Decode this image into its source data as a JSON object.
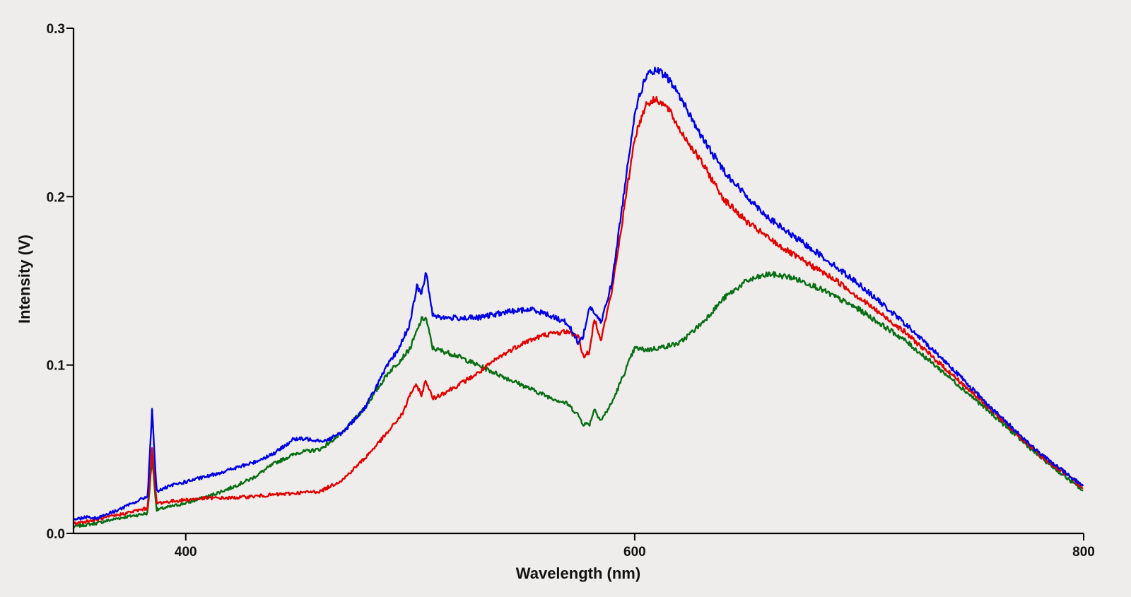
{
  "chart_data": {
    "type": "line",
    "xlabel": "Wavelength (nm)",
    "ylabel": "Intensity (V)",
    "xlim": [
      350,
      800
    ],
    "ylim": [
      0.0,
      0.3
    ],
    "xticks": [
      400,
      600,
      800
    ],
    "xtick_labels": [
      "400",
      "600",
      "800"
    ],
    "yticks": [
      0.0,
      0.1,
      0.2,
      0.3
    ],
    "ytick_labels": [
      "0.0",
      "0.1",
      "0.2",
      "0.3"
    ],
    "grid": false,
    "legend": "none",
    "series": [
      {
        "color": "#0000e0",
        "x": [
          350,
          356,
          360,
          370,
          383,
          385,
          387,
          395,
          410,
          420,
          430,
          440,
          448,
          455,
          462,
          470,
          480,
          490,
          495,
          500,
          503,
          505,
          507,
          510,
          515,
          530,
          545,
          555,
          565,
          570,
          575,
          577,
          580,
          585,
          590,
          595,
          600,
          605,
          610,
          615,
          620,
          630,
          640,
          650,
          660,
          670,
          680,
          690,
          700,
          720,
          740,
          760,
          780,
          800
        ],
        "y": [
          0.008,
          0.01,
          0.009,
          0.014,
          0.022,
          0.073,
          0.025,
          0.029,
          0.034,
          0.038,
          0.042,
          0.048,
          0.056,
          0.056,
          0.055,
          0.06,
          0.075,
          0.1,
          0.11,
          0.125,
          0.147,
          0.142,
          0.155,
          0.13,
          0.128,
          0.128,
          0.132,
          0.133,
          0.128,
          0.125,
          0.113,
          0.117,
          0.135,
          0.125,
          0.15,
          0.2,
          0.25,
          0.272,
          0.275,
          0.27,
          0.26,
          0.235,
          0.215,
          0.2,
          0.187,
          0.177,
          0.168,
          0.158,
          0.148,
          0.125,
          0.1,
          0.073,
          0.048,
          0.028
        ]
      },
      {
        "color": "#e00000",
        "x": [
          350,
          360,
          370,
          383,
          385,
          387,
          400,
          410,
          420,
          430,
          440,
          450,
          460,
          470,
          480,
          490,
          497,
          500,
          503,
          505,
          507,
          510,
          520,
          530,
          540,
          550,
          560,
          570,
          575,
          577,
          580,
          582,
          585,
          590,
          595,
          600,
          605,
          610,
          615,
          620,
          630,
          640,
          650,
          660,
          670,
          680,
          690,
          700,
          720,
          740,
          760,
          780,
          800
        ],
        "y": [
          0.006,
          0.008,
          0.011,
          0.015,
          0.05,
          0.018,
          0.02,
          0.021,
          0.021,
          0.022,
          0.023,
          0.024,
          0.025,
          0.032,
          0.045,
          0.06,
          0.072,
          0.083,
          0.088,
          0.082,
          0.091,
          0.08,
          0.087,
          0.095,
          0.105,
          0.113,
          0.118,
          0.12,
          0.117,
          0.105,
          0.108,
          0.128,
          0.115,
          0.145,
          0.19,
          0.235,
          0.255,
          0.258,
          0.252,
          0.24,
          0.22,
          0.198,
          0.185,
          0.175,
          0.166,
          0.158,
          0.15,
          0.14,
          0.12,
          0.096,
          0.072,
          0.047,
          0.027
        ]
      },
      {
        "color": "#0a6e14",
        "x": [
          350,
          360,
          370,
          383,
          385,
          387,
          400,
          410,
          420,
          430,
          440,
          450,
          460,
          470,
          480,
          490,
          495,
          500,
          505,
          507,
          510,
          520,
          530,
          540,
          550,
          560,
          570,
          575,
          577,
          580,
          582,
          585,
          590,
          600,
          605,
          610,
          620,
          630,
          640,
          650,
          660,
          670,
          680,
          690,
          700,
          720,
          740,
          760,
          780,
          800
        ],
        "y": [
          0.004,
          0.006,
          0.009,
          0.012,
          0.045,
          0.014,
          0.018,
          0.022,
          0.027,
          0.033,
          0.042,
          0.048,
          0.05,
          0.06,
          0.075,
          0.095,
          0.102,
          0.11,
          0.127,
          0.128,
          0.11,
          0.106,
          0.1,
          0.094,
          0.088,
          0.082,
          0.077,
          0.07,
          0.065,
          0.065,
          0.074,
          0.067,
          0.078,
          0.11,
          0.109,
          0.11,
          0.113,
          0.125,
          0.14,
          0.15,
          0.154,
          0.152,
          0.147,
          0.14,
          0.133,
          0.115,
          0.093,
          0.07,
          0.046,
          0.025
        ]
      }
    ]
  }
}
